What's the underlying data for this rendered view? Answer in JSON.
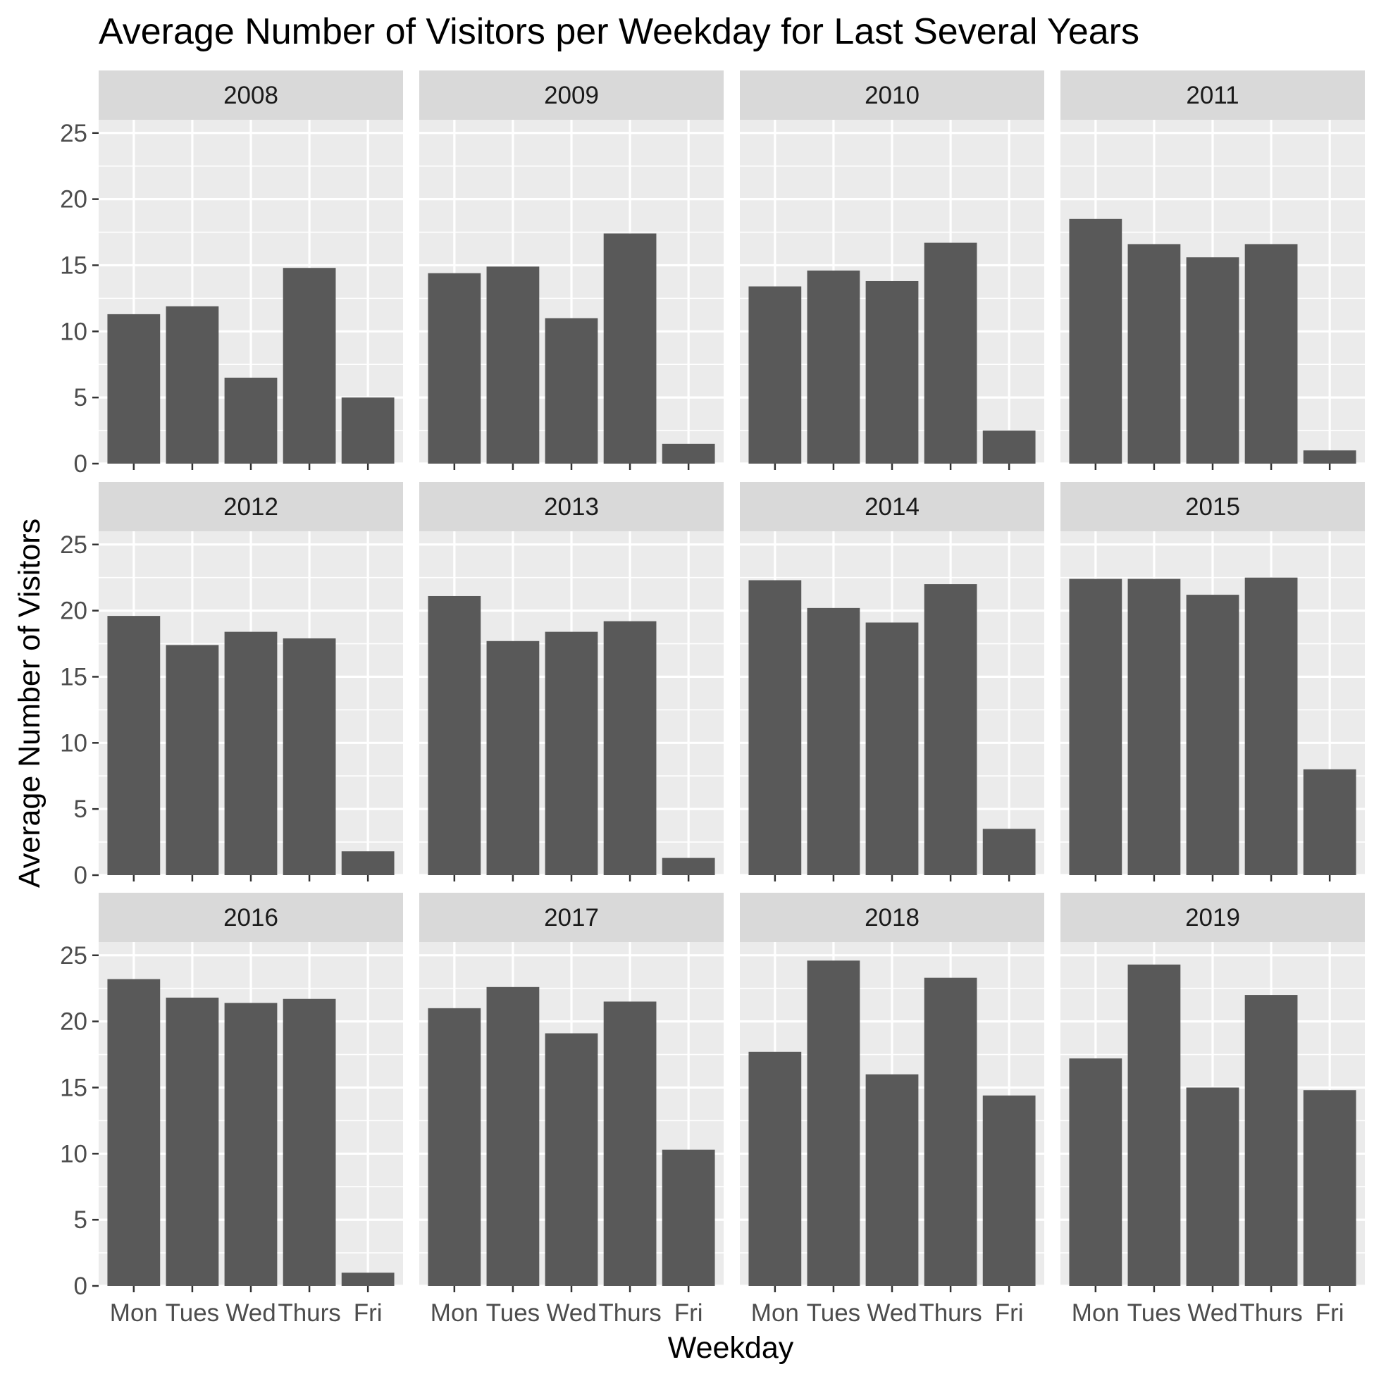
{
  "chart_data": {
    "type": "bar",
    "title": "Average Number of Visitors per Weekday for Last Several Years",
    "xlabel": "Weekday",
    "ylabel": "Average Number of Visitors",
    "categories": [
      "Mon",
      "Tues",
      "Wed",
      "Thurs",
      "Fri"
    ],
    "ylim": [
      0,
      26
    ],
    "yticks": [
      "0",
      "5",
      "10",
      "15",
      "20",
      "25"
    ],
    "grid": true,
    "facet_layout": "3 rows x 4 columns",
    "colors": {
      "bar": "#595959",
      "panel": "#ebebeb",
      "strip": "#d9d9d9"
    },
    "panels": [
      {
        "label": "2008",
        "values": [
          11.3,
          11.9,
          6.5,
          14.8,
          5.0
        ]
      },
      {
        "label": "2009",
        "values": [
          14.4,
          14.9,
          11.0,
          17.4,
          1.5
        ]
      },
      {
        "label": "2010",
        "values": [
          13.4,
          14.6,
          13.8,
          16.7,
          2.5
        ]
      },
      {
        "label": "2011",
        "values": [
          18.5,
          16.6,
          15.6,
          16.6,
          1.0
        ]
      },
      {
        "label": "2012",
        "values": [
          19.6,
          17.4,
          18.4,
          17.9,
          1.8
        ]
      },
      {
        "label": "2013",
        "values": [
          21.1,
          17.7,
          18.4,
          19.2,
          1.3
        ]
      },
      {
        "label": "2014",
        "values": [
          22.3,
          20.2,
          19.1,
          22.0,
          3.5
        ]
      },
      {
        "label": "2015",
        "values": [
          22.4,
          22.4,
          21.2,
          22.5,
          8.0
        ]
      },
      {
        "label": "2016",
        "values": [
          23.2,
          21.8,
          21.4,
          21.7,
          1.0
        ]
      },
      {
        "label": "2017",
        "values": [
          21.0,
          22.6,
          19.1,
          21.5,
          10.3
        ]
      },
      {
        "label": "2018",
        "values": [
          17.7,
          24.6,
          16.0,
          23.3,
          14.4
        ]
      },
      {
        "label": "2019",
        "values": [
          17.2,
          24.3,
          15.0,
          22.0,
          14.8
        ]
      }
    ]
  }
}
